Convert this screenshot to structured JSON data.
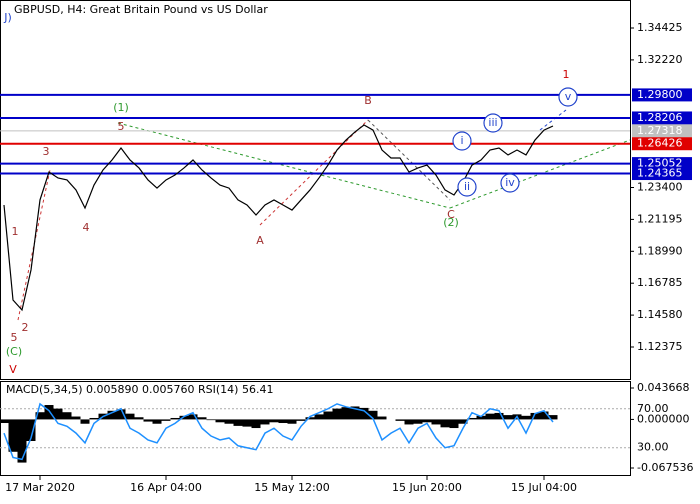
{
  "chart_data": {
    "type": "line",
    "title": "GBPUSD, H4:  Great Britain Pound vs US Dollar",
    "categories": [
      null,
      null,
      null,
      null,
      "17 Mar 2020",
      null,
      null,
      null,
      null,
      null,
      null,
      null,
      null,
      null,
      null,
      null,
      null,
      null,
      "16 Apr 04:00",
      null,
      null,
      null,
      null,
      null,
      null,
      null,
      null,
      null,
      null,
      null,
      null,
      null,
      "15 May 12:00",
      null,
      null,
      null,
      null,
      null,
      null,
      null,
      null,
      null,
      null,
      null,
      null,
      null,
      null,
      "15 Jun 20:00",
      null,
      null,
      null,
      null,
      null,
      null,
      null,
      null,
      null,
      null,
      null,
      null,
      "15 Jul 04:00",
      null
    ],
    "series": [
      {
        "color": "#000000",
        "values": [
          1.2219,
          1.1562,
          1.1493,
          1.177,
          1.2254,
          1.2447,
          1.2406,
          1.2392,
          1.2323,
          1.2198,
          1.2357,
          1.2461,
          1.253,
          1.2613,
          1.253,
          1.2475,
          1.2392,
          1.2336,
          1.2392,
          1.2426,
          1.2475,
          1.253,
          1.2461,
          1.2406,
          1.2357,
          1.2336,
          1.2254,
          1.2219,
          1.215,
          1.2219,
          1.2254,
          1.2219,
          1.2184,
          1.2254,
          1.2323,
          1.2406,
          1.2495,
          1.2599,
          1.2668,
          1.2724,
          1.2772,
          1.2737,
          1.2599,
          1.2544,
          1.2544,
          1.2447,
          1.2475,
          1.2495,
          1.2426,
          1.2323,
          1.2288,
          1.2378,
          1.2495,
          1.253,
          1.2599,
          1.2613,
          1.2565,
          1.2599,
          1.2565,
          1.2668,
          1.2737,
          1.2765
        ]
      }
    ],
    "ylim": [
      1.10094,
      1.3636
    ],
    "yticks": [
      1.34425,
      {
        "value": 1.3222,
        "label": "1.32220"
      },
      {
        "value": 1.234,
        "label": "1.23400"
      },
      1.21195,
      {
        "value": 1.1899,
        "label": "1.18990"
      },
      1.16785,
      {
        "value": 1.1458,
        "label": "1.14580"
      },
      1.12375
    ],
    "levels": [
      {
        "value": 1.298,
        "label": "1.29800",
        "color": "#0000c8"
      },
      {
        "value": 1.28206,
        "color": "#0000c8"
      },
      {
        "value": 1.27318,
        "color": "#c0c0c0"
      },
      {
        "value": 1.26426,
        "color": "#e00000"
      },
      {
        "value": 1.25052,
        "color": "#0000c8"
      },
      {
        "value": 1.24365,
        "color": "#0000c8"
      }
    ],
    "annotations": [
      {
        "text": "1",
        "color": "#a03030"
      },
      {
        "text": "2",
        "color": "#a03030"
      },
      {
        "text": "3",
        "color": "#a03030"
      },
      {
        "text": "4",
        "color": "#a03030"
      },
      {
        "text": "5",
        "color": "#a03030"
      },
      {
        "text": "5",
        "color": "#a03030"
      },
      {
        "text": "A",
        "color": "#a03030"
      },
      {
        "text": "B",
        "color": "#a03030"
      },
      {
        "text": "C",
        "color": "#a03030"
      },
      {
        "text": "1",
        "color": "#cc0000"
      },
      {
        "text": "V",
        "color": "#cc0000"
      },
      {
        "text": "(1)",
        "color": "#2e9a2e"
      },
      {
        "text": "(2)",
        "color": "#2e9a2e"
      },
      {
        "text": "(C)",
        "color": "#2e9a2e"
      },
      {
        "text": "i",
        "color": "#2244cc",
        "circled": true
      },
      {
        "text": "ii",
        "color": "#2244cc",
        "circled": true
      },
      {
        "text": "iii",
        "color": "#2244cc",
        "circled": true
      },
      {
        "text": "iv",
        "color": "#2244cc",
        "circled": true
      },
      {
        "text": "v",
        "color": "#2244cc",
        "circled": true
      },
      {
        "text": "J)",
        "color": "#2244cc"
      }
    ],
    "indicator": {
      "label": "MACD(5,34,5) 0.005890 0.005760 RSI(14) 56.41",
      "macd": [
        -0.005,
        -0.045,
        -0.06,
        -0.03,
        0.01,
        0.02,
        0.015,
        0.01,
        0.004,
        -0.006,
        0.002,
        0.008,
        0.012,
        0.014,
        0.008,
        0.003,
        -0.003,
        -0.006,
        -0.002,
        0.002,
        0.005,
        0.007,
        0.003,
        -0.001,
        -0.004,
        -0.006,
        -0.009,
        -0.01,
        -0.012,
        -0.007,
        -0.004,
        -0.005,
        -0.006,
        -0.002,
        0.003,
        0.007,
        0.011,
        0.015,
        0.017,
        0.018,
        0.016,
        0.012,
        0.004,
        0,
        -0.002,
        -0.007,
        -0.006,
        -0.004,
        -0.007,
        -0.011,
        -0.012,
        -0.006,
        0.002,
        0.005,
        0.008,
        0.009,
        0.006,
        0.007,
        0.005,
        0.009,
        0.011,
        0.006
      ],
      "macd_color": "#000000",
      "macd_lim": [
        -0.07727,
        0.0534
      ],
      "macd_ticks": [
        0.043668,
        {
          "value": 0,
          "label": "0.000000"
        },
        -0.067536
      ],
      "rsi": [
        45,
        20,
        18,
        40,
        75,
        68,
        55,
        52,
        45,
        35,
        55,
        62,
        66,
        70,
        50,
        45,
        38,
        35,
        50,
        55,
        62,
        66,
        50,
        42,
        38,
        40,
        32,
        30,
        28,
        45,
        50,
        42,
        38,
        52,
        62,
        66,
        70,
        75,
        72,
        70,
        68,
        60,
        38,
        45,
        50,
        35,
        50,
        55,
        40,
        30,
        32,
        50,
        66,
        62,
        70,
        68,
        50,
        62,
        45,
        65,
        68,
        56.41
      ],
      "rsi_color": "#1e90ff",
      "rsi_lim": [
        2,
        98.5
      ],
      "rsi_ticks": [
        {
          "value": 70,
          "label": "70.00"
        },
        {
          "value": 30,
          "label": "30.00"
        }
      ]
    }
  }
}
